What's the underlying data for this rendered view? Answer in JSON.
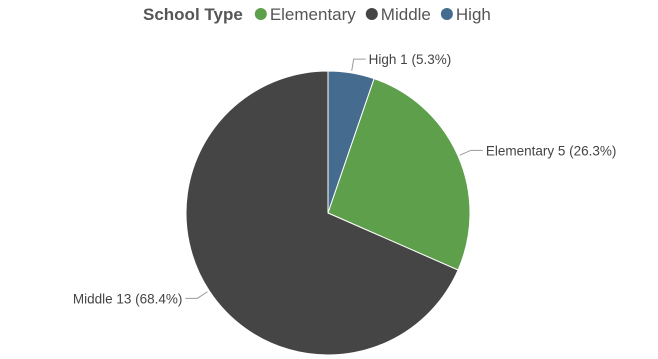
{
  "chart_data": {
    "type": "pie",
    "legend_title": "School Type",
    "legend_position": "top-center",
    "categories": [
      "Elementary",
      "Middle",
      "High"
    ],
    "values": [
      5,
      13,
      1
    ],
    "percentages": [
      "26.3%",
      "68.4%",
      "5.3%"
    ],
    "colors": [
      "#5d9f4b",
      "#454545",
      "#456c8f"
    ],
    "slice_labels": [
      "Elementary 5 (26.3%)",
      "Middle 13 (68.4%)",
      "High 1 (5.3%)"
    ]
  }
}
